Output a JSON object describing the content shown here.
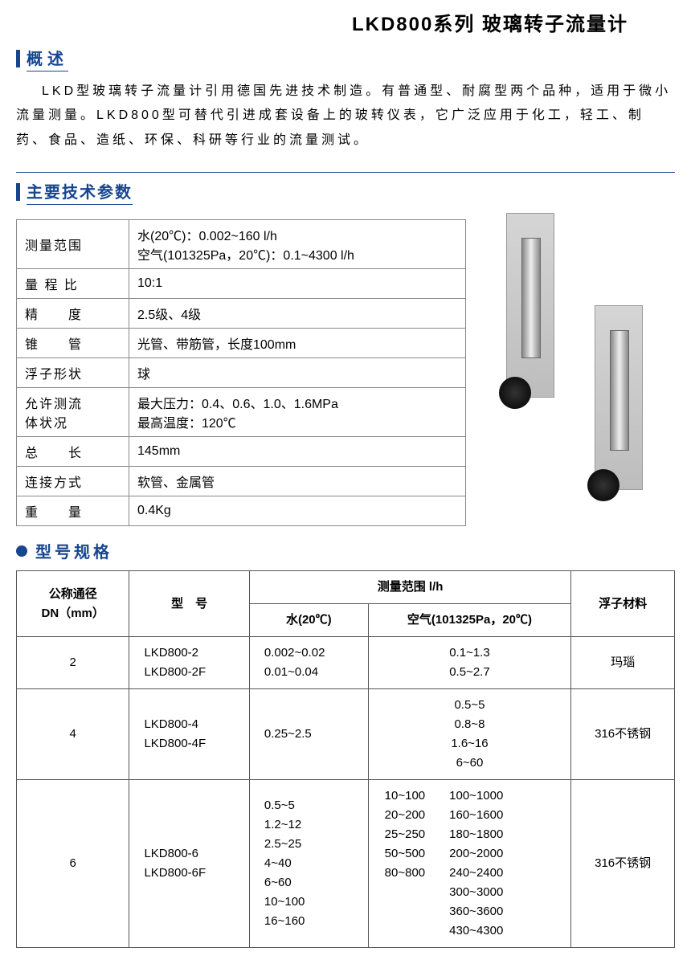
{
  "page_title": "LKD800系列 玻璃转子流量计",
  "sections": {
    "overview_title": "概述",
    "overview_body": "LKD型玻璃转子流量计引用德国先进技术制造。有普通型、耐腐型两个品种，适用于微小流量测量。LKD800型可替代引进成套设备上的玻转仪表，它广泛应用于化工，轻工、制药、食品、造纸、环保、科研等行业的流量测试。",
    "spec_title": "主要技术参数",
    "model_title": "型号规格"
  },
  "spec_rows": {
    "range_label": "测量范围",
    "range_val1": "水(20℃)：0.002~160 l/h",
    "range_val2": "空气(101325Pa，20℃)：0.1~4300 l/h",
    "ratio_label": "量 程 比",
    "ratio_val": "10:1",
    "accuracy_label": "精　　度",
    "accuracy_val": "2.5级、4级",
    "tube_label": "锥　　管",
    "tube_val": "光管、带筋管，长度100mm",
    "float_label": "浮子形状",
    "float_val": "球",
    "allow_label1": "允许测流",
    "allow_label2": "体状况",
    "allow_val1": "最大压力：0.4、0.6、1.0、1.6MPa",
    "allow_val2": "最高温度：120℃",
    "length_label": "总　　长",
    "length_val": "145mm",
    "conn_label": "连接方式",
    "conn_val": "软管、金属管",
    "weight_label": "重　　量",
    "weight_val": "0.4Kg"
  },
  "model_header": {
    "dn1": "公称通径",
    "dn2": "DN（mm）",
    "model": "型　号",
    "range": "测量范围 l/h",
    "water": "水(20℃)",
    "air": "空气(101325Pa，20℃)",
    "material": "浮子材料"
  },
  "model_rows": [
    {
      "dn": "2",
      "models": [
        "LKD800-2",
        "LKD800-2F"
      ],
      "water": [
        "0.002~0.02",
        "0.01~0.04"
      ],
      "air": [
        "0.1~1.3",
        "0.5~2.7"
      ],
      "material": "玛瑙"
    },
    {
      "dn": "4",
      "models": [
        "LKD800-4",
        "LKD800-4F"
      ],
      "water": [
        "0.25~2.5"
      ],
      "air": [
        "0.5~5",
        "0.8~8",
        "1.6~16",
        "6~60"
      ],
      "material": "316不锈钢"
    },
    {
      "dn": "6",
      "models": [
        "LKD800-6",
        "LKD800-6F"
      ],
      "water": [
        "0.5~5",
        "1.2~12",
        "2.5~25",
        "4~40",
        "6~60",
        "10~100",
        "16~160"
      ],
      "air_col1": [
        "10~100",
        "20~200",
        "25~250",
        "50~500",
        "80~800"
      ],
      "air_col2": [
        "100~1000",
        "160~1600",
        "180~1800",
        "200~2000",
        "240~2400",
        "300~3000",
        "360~3600",
        "430~4300"
      ],
      "material": "316不锈钢"
    }
  ],
  "colors": {
    "accent": "#17468e",
    "border": "#555555",
    "text": "#000000",
    "background": "#ffffff"
  }
}
